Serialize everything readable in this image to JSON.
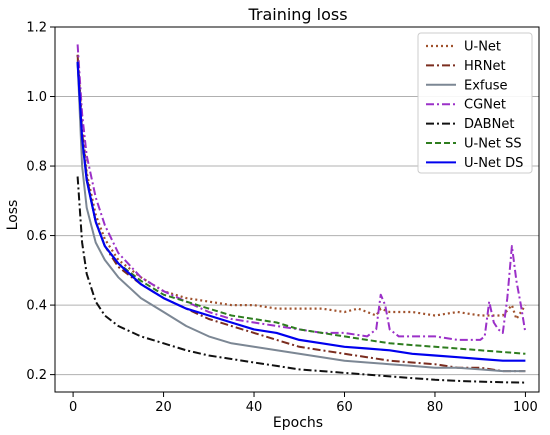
{
  "chart_data": {
    "type": "line",
    "title": "Training loss",
    "xlabel": "Epochs",
    "ylabel": "Loss",
    "xlim": [
      -4,
      103
    ],
    "ylim": [
      0.15,
      1.2
    ],
    "xticks": [
      0,
      20,
      40,
      60,
      80,
      100
    ],
    "yticks": [
      0.2,
      0.4,
      0.6,
      0.8,
      1.0,
      1.2
    ],
    "ytick_labels": [
      "0.2",
      "0.4",
      "0.6",
      "0.8",
      "1.0",
      "1.2"
    ],
    "grid": "horizontal",
    "legend_position": "top-right",
    "series": [
      {
        "name": "U-Net",
        "color": "#a0522d",
        "dash": "dotted",
        "x": [
          1,
          2,
          3,
          5,
          7,
          10,
          15,
          20,
          25,
          30,
          35,
          40,
          45,
          50,
          55,
          60,
          63,
          65,
          67,
          68,
          70,
          75,
          80,
          85,
          90,
          95,
          97,
          98,
          100
        ],
        "values": [
          1.12,
          0.92,
          0.78,
          0.66,
          0.59,
          0.53,
          0.48,
          0.44,
          0.42,
          0.41,
          0.4,
          0.4,
          0.39,
          0.39,
          0.39,
          0.38,
          0.39,
          0.38,
          0.37,
          0.39,
          0.38,
          0.38,
          0.37,
          0.38,
          0.37,
          0.37,
          0.4,
          0.36,
          0.4
        ]
      },
      {
        "name": "HRNet",
        "color": "#7b2d1f",
        "dash": "dashdot",
        "x": [
          1,
          2,
          3,
          5,
          7,
          10,
          15,
          20,
          25,
          30,
          35,
          40,
          45,
          50,
          55,
          60,
          65,
          70,
          75,
          80,
          85,
          90,
          95,
          100
        ],
        "values": [
          1.12,
          0.9,
          0.77,
          0.64,
          0.57,
          0.51,
          0.46,
          0.42,
          0.39,
          0.36,
          0.34,
          0.32,
          0.3,
          0.28,
          0.27,
          0.26,
          0.25,
          0.24,
          0.235,
          0.23,
          0.22,
          0.22,
          0.21,
          0.21
        ]
      },
      {
        "name": "Exfuse",
        "color": "#7c8794",
        "dash": "solid",
        "x": [
          1,
          2,
          3,
          5,
          7,
          10,
          15,
          20,
          25,
          30,
          35,
          40,
          45,
          50,
          55,
          60,
          65,
          70,
          75,
          80,
          85,
          90,
          95,
          100
        ],
        "values": [
          1.1,
          0.8,
          0.68,
          0.58,
          0.53,
          0.48,
          0.42,
          0.38,
          0.34,
          0.31,
          0.29,
          0.28,
          0.27,
          0.26,
          0.25,
          0.24,
          0.235,
          0.23,
          0.225,
          0.22,
          0.22,
          0.215,
          0.21,
          0.21
        ]
      },
      {
        "name": "CGNet",
        "color": "#9b30c8",
        "dash": "dashdot",
        "x": [
          1,
          2,
          3,
          5,
          7,
          10,
          15,
          20,
          25,
          30,
          35,
          40,
          45,
          50,
          55,
          60,
          65,
          67,
          68,
          69,
          70,
          72,
          75,
          80,
          85,
          90,
          91,
          92,
          93,
          94,
          95,
          96,
          97,
          98,
          99,
          100
        ],
        "values": [
          1.15,
          0.95,
          0.83,
          0.71,
          0.63,
          0.55,
          0.48,
          0.44,
          0.41,
          0.38,
          0.36,
          0.35,
          0.34,
          0.33,
          0.32,
          0.32,
          0.31,
          0.33,
          0.43,
          0.4,
          0.33,
          0.31,
          0.31,
          0.31,
          0.3,
          0.3,
          0.31,
          0.41,
          0.35,
          0.33,
          0.32,
          0.42,
          0.57,
          0.47,
          0.4,
          0.32
        ]
      },
      {
        "name": "DABNet",
        "color": "#111111",
        "dash": "dashdot",
        "x": [
          1,
          2,
          3,
          5,
          7,
          10,
          15,
          20,
          25,
          30,
          35,
          40,
          45,
          50,
          55,
          60,
          65,
          70,
          75,
          80,
          85,
          90,
          95,
          100
        ],
        "values": [
          0.77,
          0.58,
          0.49,
          0.41,
          0.37,
          0.34,
          0.31,
          0.29,
          0.27,
          0.255,
          0.245,
          0.235,
          0.225,
          0.215,
          0.21,
          0.205,
          0.2,
          0.195,
          0.19,
          0.185,
          0.182,
          0.18,
          0.178,
          0.177
        ]
      },
      {
        "name": "U-Net SS",
        "color": "#2e7d1f",
        "dash": "dashed",
        "x": [
          1,
          2,
          3,
          5,
          7,
          10,
          15,
          20,
          25,
          30,
          35,
          40,
          45,
          50,
          55,
          60,
          65,
          70,
          75,
          80,
          85,
          90,
          95,
          100
        ],
        "values": [
          1.1,
          0.88,
          0.76,
          0.64,
          0.57,
          0.52,
          0.47,
          0.43,
          0.41,
          0.39,
          0.37,
          0.36,
          0.35,
          0.33,
          0.32,
          0.31,
          0.3,
          0.29,
          0.285,
          0.28,
          0.275,
          0.27,
          0.265,
          0.26
        ]
      },
      {
        "name": "U-Net DS",
        "color": "#0000ee",
        "dash": "solid",
        "x": [
          1,
          2,
          3,
          5,
          7,
          10,
          15,
          20,
          25,
          30,
          35,
          40,
          45,
          50,
          55,
          60,
          65,
          70,
          75,
          80,
          85,
          90,
          95,
          100
        ],
        "values": [
          1.1,
          0.88,
          0.76,
          0.64,
          0.57,
          0.52,
          0.46,
          0.42,
          0.39,
          0.37,
          0.35,
          0.33,
          0.32,
          0.3,
          0.29,
          0.28,
          0.275,
          0.27,
          0.26,
          0.255,
          0.25,
          0.245,
          0.24,
          0.24
        ]
      }
    ]
  }
}
